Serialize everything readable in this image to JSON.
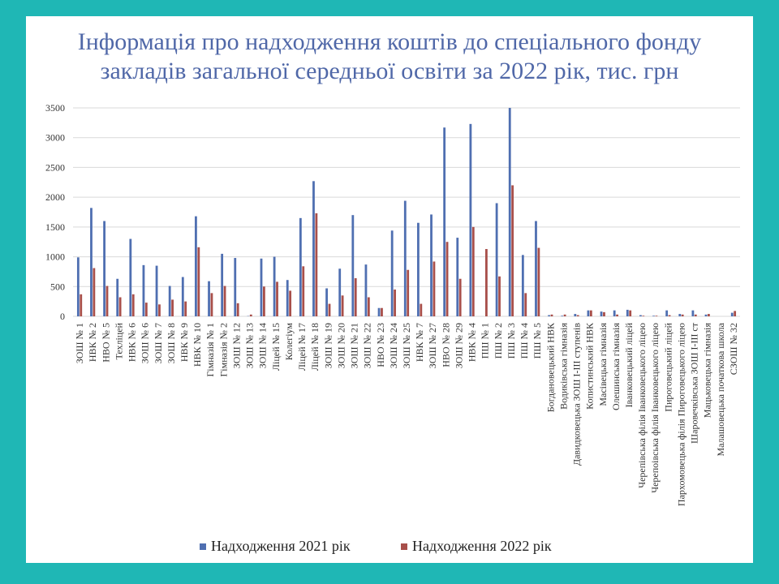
{
  "title_line1": "Інформація про надходження коштів до спеціального фонду",
  "title_line2": "закладів загальної середньої освіти за 2022 рік, тис. грн",
  "colors": {
    "background": "#1fb7b5",
    "series_2021": "#4f6fb1",
    "series_2022": "#a84f4a",
    "title": "#5068a8",
    "grid": "#d9d9d9"
  },
  "chart_data": {
    "type": "bar",
    "title": "Інформація про надходження коштів до спеціального фонду закладів загальної середньої освіти за 2022 рік, тис. грн",
    "xlabel": "",
    "ylabel": "",
    "ylim": [
      0,
      3500
    ],
    "yticks": [
      0,
      500,
      1000,
      1500,
      2000,
      2500,
      3000,
      3500
    ],
    "grid": true,
    "legend_position": "bottom",
    "categories": [
      "ЗОШ № 1",
      "НВК № 2",
      "НВО № 5",
      "Техліцей",
      "НВК № 6",
      "ЗОШ № 6",
      "ЗОШ № 7",
      "ЗОШ № 8",
      "НВК № 9",
      "НВК № 10",
      "Гімназія № 1",
      "Гімназія № 2",
      "ЗОШ № 12",
      "ЗОШ № 13",
      "ЗОШ № 14",
      "Ліцей № 15",
      "Колегіум",
      "Ліцей № 17",
      "Ліцей № 18",
      "ЗОШ № 19",
      "ЗОШ № 20",
      "ЗОШ № 21",
      "ЗОШ № 22",
      "НВО № 23",
      "ЗОШ № 24",
      "ЗОШ № 25",
      "НВК № 7",
      "ЗОШ № 27",
      "НВО № 28",
      "ЗОШ № 29",
      "НВК № 4",
      "ПШ № 1",
      "ПШ № 2",
      "ПШ № 3",
      "ПШ № 4",
      "ПШ № 5",
      "Богдановецький НВК",
      "Водиківська гімназія",
      "Давидковецька ЗОШ І-ІІІ ступенів",
      "Копистинський НВК",
      "Масівецька гімназія",
      "Олешинська гімназія",
      "Іванковецький ліцей",
      "Черепівська філія Іванковецького ліцею",
      "Черепоівська філія Іванковецького ліцею",
      "Пироговецький ліцей",
      "Пархомовецька філія Пироговецького ліцею",
      "Шаровечківська ЗОШ І-ІІІ ст",
      "Мацьковецька гімназія",
      "Малашовецька початкова школа",
      "СЗОШ № 32"
    ],
    "series": [
      {
        "name": "Надходження 2021 рік",
        "color": "#4f6fb1",
        "values": [
          990,
          1820,
          1600,
          630,
          1300,
          860,
          850,
          510,
          660,
          1680,
          590,
          1050,
          980,
          5,
          970,
          1000,
          610,
          1650,
          2270,
          470,
          800,
          1700,
          870,
          140,
          1440,
          1940,
          1570,
          1710,
          3170,
          1320,
          3230,
          0,
          1900,
          3500,
          1030,
          1600,
          20,
          10,
          40,
          100,
          80,
          100,
          110,
          20,
          10,
          100,
          40,
          100,
          30,
          0,
          60
        ]
      },
      {
        "name": "Надходження 2022 рік",
        "color": "#a84f4a",
        "values": [
          370,
          810,
          510,
          320,
          370,
          230,
          200,
          280,
          250,
          1160,
          390,
          510,
          220,
          30,
          500,
          580,
          430,
          840,
          1730,
          210,
          350,
          640,
          320,
          140,
          450,
          780,
          210,
          920,
          1250,
          630,
          1500,
          1130,
          670,
          2200,
          390,
          1150,
          30,
          30,
          20,
          100,
          70,
          30,
          100,
          10,
          10,
          20,
          30,
          30,
          40,
          0,
          90
        ]
      }
    ]
  }
}
